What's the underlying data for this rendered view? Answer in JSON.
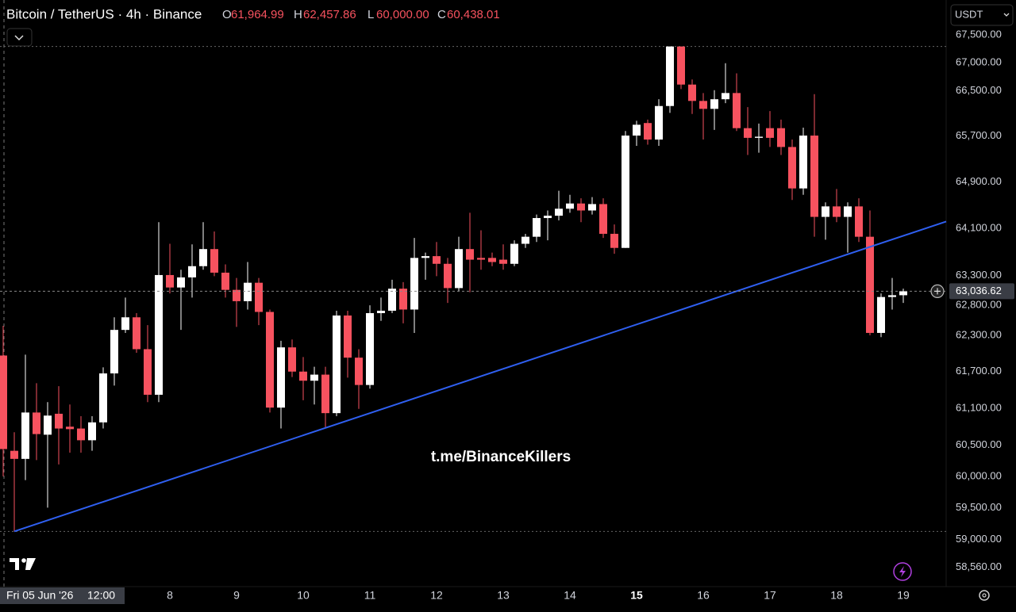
{
  "chart_data": {
    "type": "candlestick",
    "header": {
      "symbol": "Bitcoin / TetherUS · 4h · Binance",
      "ohlc": [
        {
          "label": "O",
          "value": "61,964.99"
        },
        {
          "label": "H",
          "value": "62,457.86"
        },
        {
          "label": "L",
          "value": "60,000.00"
        },
        {
          "label": "C",
          "value": "60,438.01"
        }
      ]
    },
    "currency": "USDT",
    "watermark": "t.me/BinanceKillers",
    "crosshair_date": "Fri 05 Jun '26",
    "crosshair_time": "12:00",
    "categories": [
      null,
      null,
      null,
      null,
      null,
      null,
      null,
      null,
      null,
      null,
      null,
      null,
      null,
      null,
      null,
      "8",
      null,
      null,
      null,
      null,
      null,
      "9",
      null,
      null,
      null,
      null,
      null,
      "10",
      null,
      null,
      null,
      null,
      null,
      "11",
      null,
      null,
      null,
      null,
      null,
      "12",
      null,
      null,
      null,
      null,
      null,
      "13",
      null,
      null,
      null,
      null,
      null,
      "14",
      null,
      null,
      null,
      null,
      null,
      "15",
      null,
      null,
      null,
      null,
      null,
      "16",
      null,
      null,
      null,
      null,
      null,
      "17",
      null,
      null,
      null,
      null,
      null,
      "18",
      null,
      null,
      null,
      null,
      null,
      "19"
    ],
    "emphasized_categories": [
      57
    ],
    "open": [
      61964.99,
      60410,
      60280,
      61030,
      60670,
      61010,
      60800,
      60770,
      60580,
      60870,
      61670,
      62390,
      62600,
      62070,
      61320,
      63310,
      63100,
      63270,
      63460,
      63750,
      63350,
      63060,
      62870,
      63180,
      62690,
      61110,
      62100,
      61700,
      61550,
      61650,
      61020,
      62630,
      61930,
      61480,
      62670,
      62710,
      63080,
      62730,
      63600,
      63630,
      63500,
      63090,
      63750,
      63600,
      63600,
      63570,
      63500,
      63840,
      63960,
      64280,
      64320,
      64440,
      64530,
      64410,
      64520,
      64010,
      63770,
      65710,
      65930,
      65640,
      66230,
      67290,
      66610,
      66320,
      66180,
      66350,
      66460,
      65840,
      65670,
      65840,
      65840,
      65510,
      64790,
      65710,
      64300,
      64480,
      64300,
      64480,
      63960,
      62340,
      62940,
      62970
    ],
    "high": [
      62457.86,
      60710,
      61980,
      61510,
      61200,
      61460,
      61160,
      60970,
      60970,
      61770,
      62600,
      62930,
      62670,
      62470,
      64210,
      63840,
      63400,
      63830,
      64210,
      64050,
      63490,
      63260,
      63530,
      63260,
      62730,
      62210,
      62230,
      61940,
      61780,
      61780,
      62710,
      62710,
      62070,
      62800,
      62930,
      63230,
      63190,
      63940,
      63690,
      63870,
      63600,
      63960,
      64370,
      64070,
      63690,
      63830,
      63900,
      64010,
      64340,
      64410,
      64750,
      64680,
      64620,
      64640,
      64620,
      64170,
      65790,
      65970,
      65990,
      66350,
      67290,
      67290,
      66700,
      66460,
      66510,
      66990,
      66810,
      66210,
      65920,
      66140,
      65990,
      65640,
      65850,
      66440,
      64550,
      64780,
      64550,
      64620,
      64410,
      63000,
      63260,
      63080
    ],
    "low": [
      60000,
      59125,
      59940,
      60260,
      59500,
      60190,
      60380,
      60380,
      60410,
      60770,
      61470,
      62340,
      62010,
      61200,
      61200,
      63000,
      62390,
      62930,
      63400,
      63290,
      62930,
      62440,
      62730,
      62470,
      61030,
      60770,
      61610,
      61230,
      61160,
      60770,
      60970,
      61600,
      61090,
      61420,
      62540,
      62670,
      62500,
      62340,
      63230,
      63290,
      62840,
      63040,
      63020,
      63400,
      63460,
      63400,
      63460,
      63770,
      63870,
      63900,
      64240,
      64370,
      64210,
      64340,
      63940,
      63670,
      63770,
      65530,
      65550,
      65530,
      66110,
      66530,
      66090,
      65640,
      65810,
      66280,
      65790,
      65370,
      65410,
      65510,
      65370,
      64590,
      64680,
      63960,
      63910,
      64210,
      63690,
      63870,
      62300,
      62270,
      62730,
      62840
    ],
    "close": [
      60438.01,
      60280,
      61030,
      60680,
      60980,
      60770,
      60760,
      60580,
      60870,
      61670,
      62390,
      62600,
      62070,
      61320,
      63310,
      63100,
      63270,
      63460,
      63750,
      63350,
      63060,
      62870,
      63180,
      62690,
      61110,
      62100,
      61700,
      61550,
      61650,
      61020,
      62630,
      61930,
      61480,
      62670,
      62710,
      63080,
      62730,
      63600,
      63630,
      63500,
      63090,
      63750,
      63570,
      63570,
      63530,
      63500,
      63840,
      63960,
      64280,
      64320,
      64440,
      64530,
      64410,
      64520,
      64010,
      63770,
      65710,
      65900,
      65640,
      66230,
      67290,
      66610,
      66320,
      66180,
      66350,
      66460,
      65840,
      65670,
      65690,
      65670,
      65510,
      64790,
      65710,
      64300,
      64480,
      64300,
      64480,
      63960,
      62340,
      62940,
      62970,
      63036.62
    ],
    "last_price_label": "63,036.62",
    "up_color": "#ffffff",
    "down_color": "#f7525f",
    "trend_line": {
      "color": "#2f5ff0",
      "x": [
        1,
        84.86
      ],
      "y": [
        59125,
        64220
      ]
    },
    "log_scale": true,
    "ylim": [
      58260,
      68130
    ],
    "yticks": [
      {
        "value": 67500,
        "label": "67,500.00"
      },
      {
        "value": 67000,
        "label": "67,000.00"
      },
      {
        "value": 66500,
        "label": "66,500.00"
      },
      {
        "value": 65700,
        "label": "65,700.00"
      },
      {
        "value": 64900,
        "label": "64,900.00"
      },
      {
        "value": 64100,
        "label": "64,100.00"
      },
      {
        "value": 63300,
        "label": "63,300.00"
      },
      {
        "value": 62800,
        "label": "62,800.00"
      },
      {
        "value": 62300,
        "label": "62,300.00"
      },
      {
        "value": 61700,
        "label": "61,700.00"
      },
      {
        "value": 61100,
        "label": "61,100.00"
      },
      {
        "value": 60500,
        "label": "60,500.00"
      },
      {
        "value": 60000,
        "label": "60,000.00"
      },
      {
        "value": 59500,
        "label": "59,500.00"
      },
      {
        "value": 59000,
        "label": "59,000.00"
      },
      {
        "value": 58560,
        "label": "58,560.00"
      }
    ],
    "grid": false
  }
}
